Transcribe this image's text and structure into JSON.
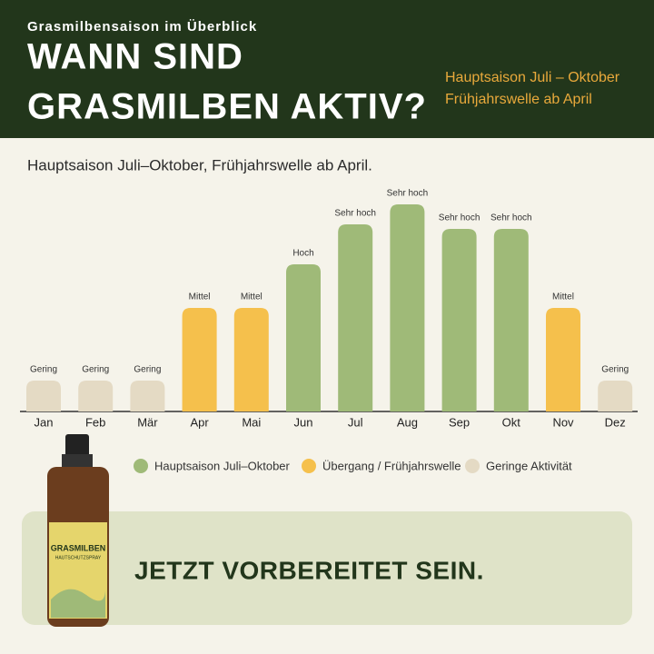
{
  "header": {
    "kicker": "Grasmilbensaison im Überblick",
    "title_lines": [
      "WANN SIND",
      "GRASMILBEN AKTIV?"
    ],
    "notes": [
      "Hauptsaison Juli – Oktober",
      "Frühjahrswelle ab April"
    ]
  },
  "chart_data": {
    "type": "bar",
    "title": "Hauptsaison Juli–Oktober, Frühjahrswelle ab April.",
    "categories": [
      "Jan",
      "Feb",
      "Mär",
      "Apr",
      "Mai",
      "Jun",
      "Jul",
      "Aug",
      "Sep",
      "Okt",
      "Nov",
      "Dez"
    ],
    "values": [
      34,
      34,
      34,
      114,
      114,
      162,
      206,
      228,
      201,
      201,
      114,
      34
    ],
    "value_labels": [
      "Gering",
      "Gering",
      "Gering",
      "Mittel",
      "Mittel",
      "Hoch",
      "Sehr hoch",
      "Sehr hoch",
      "Sehr hoch",
      "Sehr hoch",
      "Mittel",
      "Gering"
    ],
    "colors": [
      "#e4dac4",
      "#e4dac4",
      "#e4dac4",
      "#f5c04c",
      "#f5c04c",
      "#9fba78",
      "#9fba78",
      "#9fba78",
      "#9fba78",
      "#9fba78",
      "#f5c04c",
      "#e4dac4"
    ],
    "ylim": [
      0,
      228
    ],
    "legend": [
      {
        "name": "Hauptsaison Juli–Oktober",
        "color": "#9fba78"
      },
      {
        "name": "Übergang / Frühjahrswelle",
        "color": "#f5c04c"
      },
      {
        "name": "Geringe Aktivität",
        "color": "#e4dac4"
      }
    ]
  },
  "product": {
    "name": "GRASMILBEN",
    "subtitle": "HAUTSCHUTZSPRAY"
  },
  "cta": "JETZT VORBEREITET SEIN."
}
